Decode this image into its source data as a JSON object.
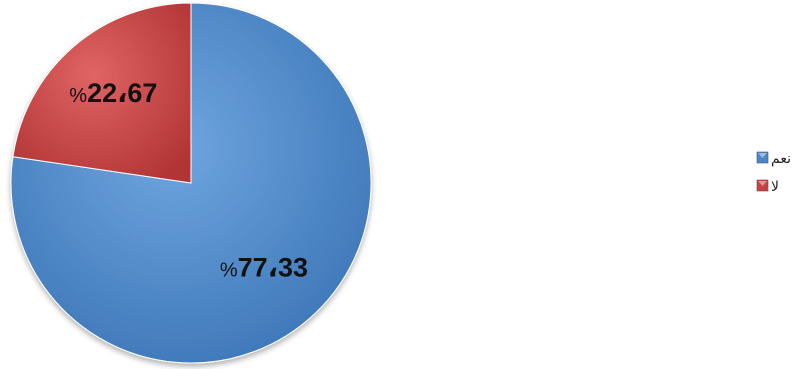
{
  "chart_data": {
    "type": "pie",
    "categories": [
      "نعم",
      "لا"
    ],
    "values": [
      77.33,
      22.67
    ],
    "data_labels": [
      "77،33",
      "22،67"
    ],
    "percent_sign": "%",
    "colors": [
      "#4A86C8",
      "#C94040"
    ],
    "title": "",
    "legend_position": "right",
    "legend": [
      {
        "label": "نعم",
        "color": "#4A86C8"
      },
      {
        "label": "لا",
        "color": "#C94040"
      }
    ]
  }
}
